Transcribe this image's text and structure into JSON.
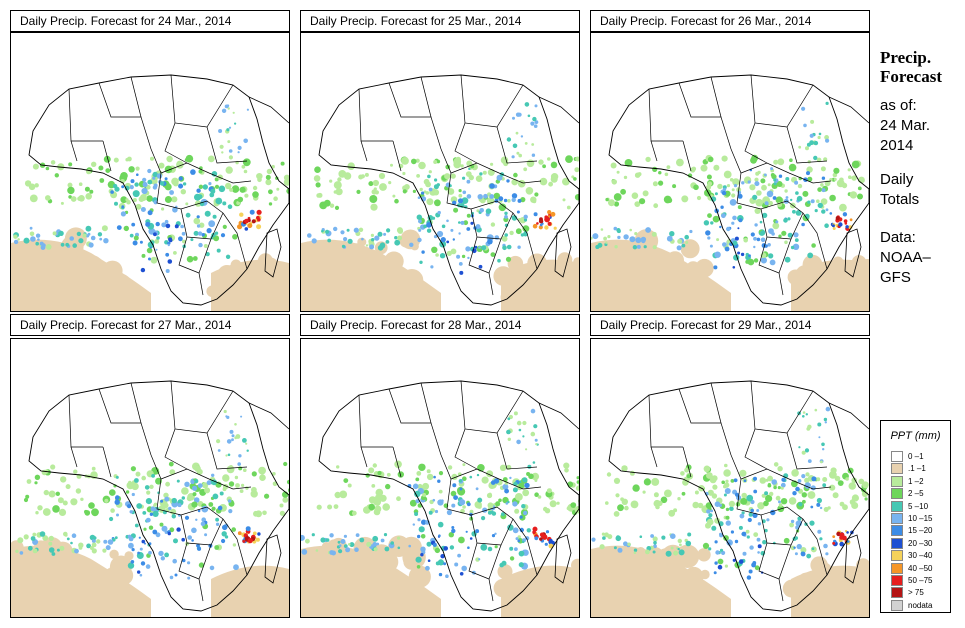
{
  "panels": [
    {
      "title": "Daily Precip. Forecast for  24 Mar., 2014"
    },
    {
      "title": "Daily Precip. Forecast for  25 Mar., 2014"
    },
    {
      "title": "Daily Precip. Forecast for  26 Mar., 2014"
    },
    {
      "title": "Daily Precip. Forecast for  27 Mar., 2014"
    },
    {
      "title": "Daily Precip. Forecast for  28 Mar., 2014"
    },
    {
      "title": "Daily Precip. Forecast for  29 Mar., 2014"
    }
  ],
  "side": {
    "heading_line1": "Precip.",
    "heading_line2": "Forecast",
    "asof_line1": "as of:",
    "asof_line2": "24 Mar.",
    "asof_line3": "2014",
    "totals_line1": "Daily",
    "totals_line2": "Totals",
    "data_line1": "Data:",
    "data_line2": "NOAA–",
    "data_line3": "GFS"
  },
  "legend": {
    "title": "PPT (mm)",
    "items": [
      {
        "label": "0 –1",
        "color": "#ffffff"
      },
      {
        "label": ".1 –1",
        "color": "#e8d2b0"
      },
      {
        "label": "1 –2",
        "color": "#b8eb9c"
      },
      {
        "label": "2 –5",
        "color": "#6ed65c"
      },
      {
        "label": "5 –10",
        "color": "#46c8b4"
      },
      {
        "label": "10 –15",
        "color": "#78b4f0"
      },
      {
        "label": "15 –20",
        "color": "#3c8ce6"
      },
      {
        "label": "20 –30",
        "color": "#1e50d2"
      },
      {
        "label": "30 –40",
        "color": "#f5d25a"
      },
      {
        "label": "40 –50",
        "color": "#f59628"
      },
      {
        "label": "50 –75",
        "color": "#e61e1e"
      },
      {
        "label": "> 75",
        "color": "#b41414"
      },
      {
        "label": "nodata",
        "color": "#d2d2d2"
      }
    ]
  }
}
